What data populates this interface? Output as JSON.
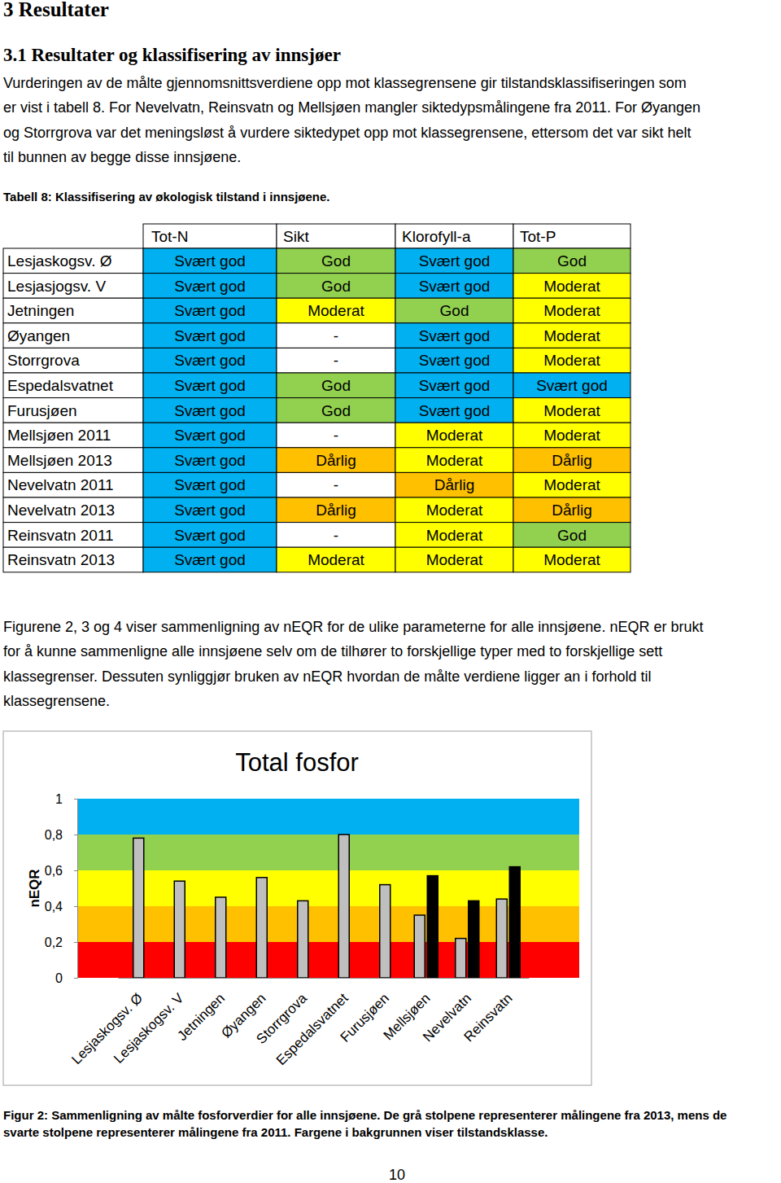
{
  "document": {
    "heading": "3 Resultater",
    "subheading": "3.1 Resultater og klassifisering av innsjøer",
    "paragraph1": [
      "Vurderingen av de målte gjennomsnittsverdiene opp mot klassegrensene gir tilstandsklassifiseringen som",
      "er vist i tabell 8. For Nevelvatn, Reinsvatn og Mellsjøen mangler siktedypsmålingene fra 2011. For Øyangen",
      "og Storrgrova var det meningsløst å vurdere siktedypet opp mot klassegrensene, ettersom det var sikt helt",
      "til bunnen av begge disse innsjøene."
    ],
    "table_caption": "Tabell 8: Klassifisering av økologisk tilstand i innsjøene.",
    "table": {
      "columns": [
        "Tot-N",
        "Sikt",
        "Klorofyll-a",
        "Tot-P"
      ],
      "rows": [
        [
          "Lesjaskogsv. Ø",
          "Svært god",
          "God",
          "Svært god",
          "God"
        ],
        [
          "Lesjasjogsv. V",
          "Svært god",
          "God",
          "Svært god",
          "Moderat"
        ],
        [
          "Jetningen",
          "Svært god",
          "Moderat",
          "God",
          "Moderat"
        ],
        [
          "Øyangen",
          "Svært god",
          "-",
          "Svært god",
          "Moderat"
        ],
        [
          "Storrgrova",
          "Svært god",
          "-",
          "Svært god",
          "Moderat"
        ],
        [
          "Espedalsvatnet",
          "Svært god",
          "God",
          "Svært god",
          "Svært god"
        ],
        [
          "Furusjøen",
          "Svært god",
          "God",
          "Svært god",
          "Moderat"
        ],
        [
          "Mellsjøen 2011",
          "Svært god",
          "-",
          "Moderat",
          "Moderat"
        ],
        [
          "Mellsjøen 2013",
          "Svært god",
          "Dårlig",
          "Moderat",
          "Dårlig"
        ],
        [
          "Nevelvatn 2011",
          "Svært god",
          "-",
          "Dårlig",
          "Moderat"
        ],
        [
          "Nevelvatn 2013",
          "Svært god",
          "Dårlig",
          "Moderat",
          "Dårlig"
        ],
        [
          "Reinsvatn 2011",
          "Svært god",
          "-",
          "Moderat",
          "God"
        ],
        [
          "Reinsvatn 2013",
          "Svært god",
          "Moderat",
          "Moderat",
          "Moderat"
        ]
      ],
      "class_colors": {
        "Svært god": "#00b0f0",
        "God": "#92d050",
        "Moderat": "#ffff00",
        "Dårlig": "#ffc000",
        "-": "#ffffff"
      }
    },
    "paragraph2": [
      "Figurene 2, 3 og 4 viser sammenligning av nEQR for de ulike parameterne for alle innsjøene. nEQR er brukt",
      "for å kunne sammenligne alle innsjøene selv om de tilhører to forskjellige typer med to forskjellige sett",
      "klassegrenser. Dessuten synliggjør bruken av nEQR hvordan de målte verdiene ligger an i forhold til",
      "klassegrensene."
    ],
    "figure_caption": [
      "Figur 2: Sammenligning av målte fosforverdier for alle innsjøene. De grå stolpene representerer målingene fra 2013, mens de",
      "svarte stolpene representerer målingene fra 2011. Fargene i bakgrunnen viser tilstandsklasse."
    ],
    "page_number": "10"
  },
  "chart_data": {
    "type": "bar",
    "title": "Total fosfor",
    "y_label": "nEQR",
    "categories": [
      "Lesjaskogsv. Ø",
      "Lesjaskogsv. V",
      "Jetningen",
      "Øyangen",
      "Storrgrova",
      "Espedalsvatnet",
      "Furusjøen",
      "Mellsjøen",
      "Nevelvatn",
      "Reinsvatn"
    ],
    "series": [
      {
        "color": "#bfbfbf",
        "values": [
          0.78,
          0.54,
          0.45,
          0.56,
          0.43,
          0.8,
          0.52,
          0.35,
          0.22,
          0.44
        ]
      },
      {
        "color": "#000000",
        "values": [
          null,
          null,
          null,
          null,
          null,
          null,
          null,
          0.57,
          0.43,
          0.62
        ]
      }
    ],
    "ylim": [
      0,
      1
    ],
    "yticks": [
      0,
      {
        "value": 0.2,
        "label": "0,2"
      },
      {
        "value": 0.4,
        "label": "0,4"
      },
      {
        "value": 0.6,
        "label": "0,6"
      },
      {
        "value": 0.8,
        "label": "0,8"
      },
      1
    ],
    "bands": [
      {
        "from": 0,
        "to": 0.2,
        "color": "#ff0000"
      },
      {
        "from": 0.2,
        "to": 0.4,
        "color": "#ffc000"
      },
      {
        "from": 0.4,
        "to": 0.6,
        "color": "#ffff00"
      },
      {
        "from": 0.6,
        "to": 0.8,
        "color": "#92d050"
      },
      {
        "from": 0.8,
        "to": 1,
        "color": "#00b0f0"
      }
    ]
  }
}
